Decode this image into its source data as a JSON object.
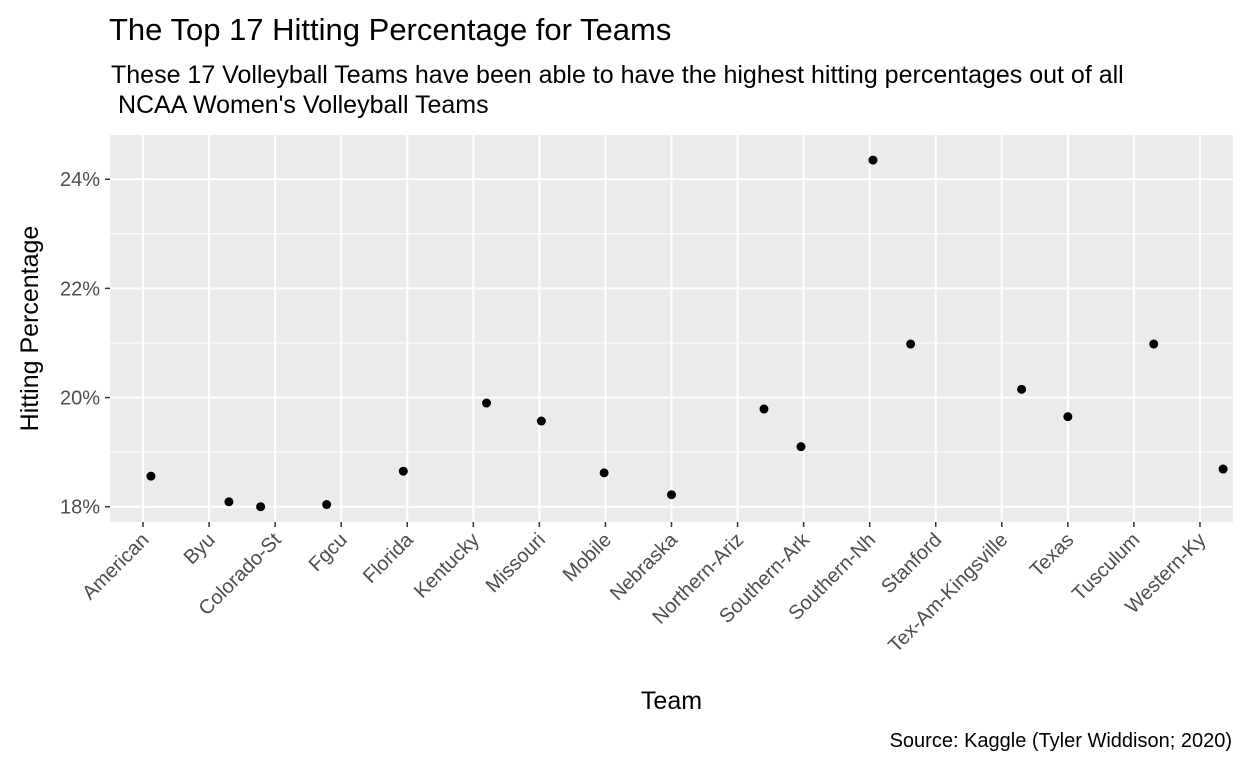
{
  "chart_data": {
    "type": "scatter",
    "title": "The Top 17 Hitting Percentage for Teams",
    "subtitle": "These 17 Volleyball Teams have been able to have the highest hitting percentages out of all\n NCAA Women's Volleyball Teams",
    "xlabel": "Team",
    "ylabel": "Hitting Percentage",
    "caption": "Source: Kaggle (Tyler Widdison; 2020)",
    "categories": [
      "American",
      "Byu",
      "Colorado-St",
      "Fgcu",
      "Florida",
      "Kentucky",
      "Missouri",
      "Mobile",
      "Nebraska",
      "Northern-Ariz",
      "Southern-Ark",
      "Southern-Nh",
      "Stanford",
      "Tex-Am-Kingsville",
      "Texas",
      "Tusculum",
      "Western-Ky"
    ],
    "yticks": [
      0.18,
      0.2,
      0.22,
      0.24
    ],
    "ytick_labels": [
      "18%",
      "20%",
      "22%",
      "24%"
    ],
    "ylim": [
      0.1772,
      0.2481
    ],
    "points": [
      {
        "x": 0.12,
        "y": 0.1856
      },
      {
        "x": 1.3,
        "y": 0.1809
      },
      {
        "x": 1.78,
        "y": 0.18
      },
      {
        "x": 2.78,
        "y": 0.1804
      },
      {
        "x": 3.94,
        "y": 0.1865
      },
      {
        "x": 5.2,
        "y": 0.199
      },
      {
        "x": 6.03,
        "y": 0.1957
      },
      {
        "x": 6.98,
        "y": 0.1862
      },
      {
        "x": 8.0,
        "y": 0.1822
      },
      {
        "x": 9.4,
        "y": 0.1979
      },
      {
        "x": 9.96,
        "y": 0.191
      },
      {
        "x": 11.05,
        "y": 0.2435
      },
      {
        "x": 11.62,
        "y": 0.2098
      },
      {
        "x": 13.3,
        "y": 0.2015
      },
      {
        "x": 14.0,
        "y": 0.1965
      },
      {
        "x": 15.3,
        "y": 0.2098
      },
      {
        "x": 16.35,
        "y": 0.1869
      }
    ],
    "grid": true,
    "panel_color": "#ebebeb",
    "point_color": "#000000"
  }
}
